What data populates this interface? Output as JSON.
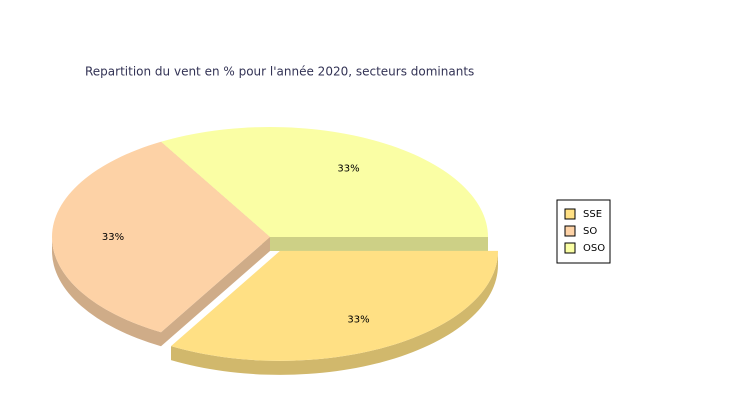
{
  "chart_data": {
    "type": "pie",
    "title": "Repartition du vent en % pour l'année 2020, secteurs dominants",
    "categories": [
      "SSE",
      "SO",
      "OSO"
    ],
    "values": [
      33,
      33,
      33
    ],
    "value_labels": [
      "33%",
      "33%",
      "33%"
    ],
    "colors": [
      "#ffe084",
      "#fdd2a6",
      "#fafea4"
    ],
    "legend": "right"
  }
}
